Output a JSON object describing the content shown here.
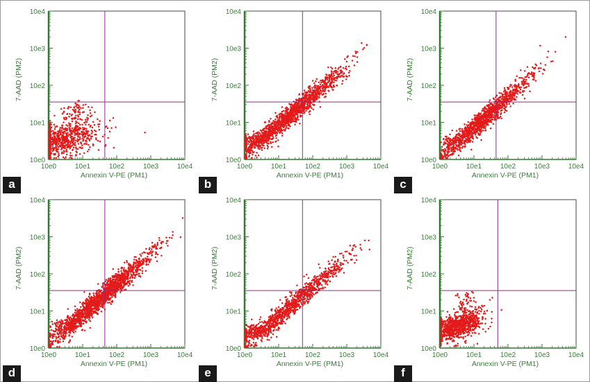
{
  "axes": {
    "x_label": "Annexin V-PE (PM1)",
    "y_label": "7-AAD (PM2)",
    "x_ticks": [
      "10e0",
      "10e1",
      "10e2",
      "10e3",
      "10e4"
    ],
    "y_ticks": [
      "10e0",
      "10e1",
      "10e2",
      "10e3",
      "10e4"
    ]
  },
  "colors": {
    "dots": "#e31b1b",
    "gate": "#8a2d8a",
    "axis_text": "#3a7d3a",
    "badge_bg": "#1a1a1a"
  },
  "chart_data": [
    {
      "panel": "a",
      "type": "scatter",
      "title": "",
      "xlabel": "Annexin V-PE (PM1)",
      "ylabel": "7-AAD (PM2)",
      "xscale": "log",
      "yscale": "log",
      "xlim_log10": [
        0,
        4
      ],
      "ylim_log10": [
        0,
        4
      ],
      "gate_log10": {
        "x": 1.65,
        "y": 1.55
      },
      "populations": [
        {
          "cx": 0.45,
          "cy": 0.55,
          "sx": 0.5,
          "sy": 0.25,
          "rho": 0.35,
          "n": 700
        },
        {
          "cx": 0.85,
          "cy": 1.3,
          "sx": 0.22,
          "sy": 0.15,
          "rho": 0.1,
          "n": 70
        }
      ]
    },
    {
      "panel": "b",
      "type": "scatter",
      "title": "",
      "xlabel": "Annexin V-PE (PM1)",
      "ylabel": "7-AAD (PM2)",
      "xscale": "log",
      "yscale": "log",
      "xlim_log10": [
        0,
        4
      ],
      "ylim_log10": [
        0,
        4
      ],
      "gate_log10": {
        "x": 1.7,
        "y": 1.55
      },
      "populations": [
        {
          "cx": 1.4,
          "cy": 1.25,
          "sx": 0.75,
          "sy": 0.6,
          "rho": 0.97,
          "n": 1400
        },
        {
          "cx": 0.3,
          "cy": 0.5,
          "sx": 0.3,
          "sy": 0.12,
          "rho": 0.4,
          "n": 160
        }
      ]
    },
    {
      "panel": "c",
      "type": "scatter",
      "title": "",
      "xlabel": "Annexin V-PE (PM1)",
      "ylabel": "7-AAD (PM2)",
      "xscale": "log",
      "yscale": "log",
      "xlim_log10": [
        0,
        4
      ],
      "ylim_log10": [
        0,
        4
      ],
      "gate_log10": {
        "x": 1.65,
        "y": 1.55
      },
      "populations": [
        {
          "cx": 1.3,
          "cy": 1.1,
          "sx": 0.7,
          "sy": 0.6,
          "rho": 0.97,
          "n": 1300
        },
        {
          "cx": 0.3,
          "cy": 0.5,
          "sx": 0.15,
          "sy": 0.1,
          "rho": 0.3,
          "n": 50
        }
      ]
    },
    {
      "panel": "d",
      "type": "scatter",
      "title": "",
      "xlabel": "Annexin V-PE (PM1)",
      "ylabel": "7-AAD (PM2)",
      "xscale": "log",
      "yscale": "log",
      "xlim_log10": [
        0,
        4
      ],
      "ylim_log10": [
        0,
        4
      ],
      "gate_log10": {
        "x": 1.65,
        "y": 1.55
      },
      "populations": [
        {
          "cx": 1.55,
          "cy": 1.35,
          "sx": 0.75,
          "sy": 0.62,
          "rho": 0.97,
          "n": 1700
        },
        {
          "cx": 0.5,
          "cy": 0.6,
          "sx": 0.25,
          "sy": 0.15,
          "rho": 0.5,
          "n": 120
        }
      ]
    },
    {
      "panel": "e",
      "type": "scatter",
      "title": "",
      "xlabel": "Annexin V-PE (PM1)",
      "ylabel": "7-AAD (PM2)",
      "xscale": "log",
      "yscale": "log",
      "xlim_log10": [
        0,
        4
      ],
      "ylim_log10": [
        0,
        4
      ],
      "gate_log10": {
        "x": 1.7,
        "y": 1.55
      },
      "populations": [
        {
          "cx": 1.45,
          "cy": 1.2,
          "sx": 0.75,
          "sy": 0.62,
          "rho": 0.97,
          "n": 1000
        },
        {
          "cx": 0.3,
          "cy": 0.45,
          "sx": 0.3,
          "sy": 0.12,
          "rho": 0.3,
          "n": 180
        }
      ]
    },
    {
      "panel": "f",
      "type": "scatter",
      "title": "",
      "xlabel": "Annexin V-PE (PM1)",
      "ylabel": "7-AAD (PM2)",
      "xscale": "log",
      "yscale": "log",
      "xlim_log10": [
        0,
        4
      ],
      "ylim_log10": [
        0,
        4
      ],
      "gate_log10": {
        "x": 1.7,
        "y": 1.55
      },
      "populations": [
        {
          "cx": 0.55,
          "cy": 0.6,
          "sx": 0.35,
          "sy": 0.2,
          "rho": 0.5,
          "n": 900
        },
        {
          "cx": 0.75,
          "cy": 1.25,
          "sx": 0.18,
          "sy": 0.18,
          "rho": 0.1,
          "n": 50
        }
      ]
    }
  ]
}
